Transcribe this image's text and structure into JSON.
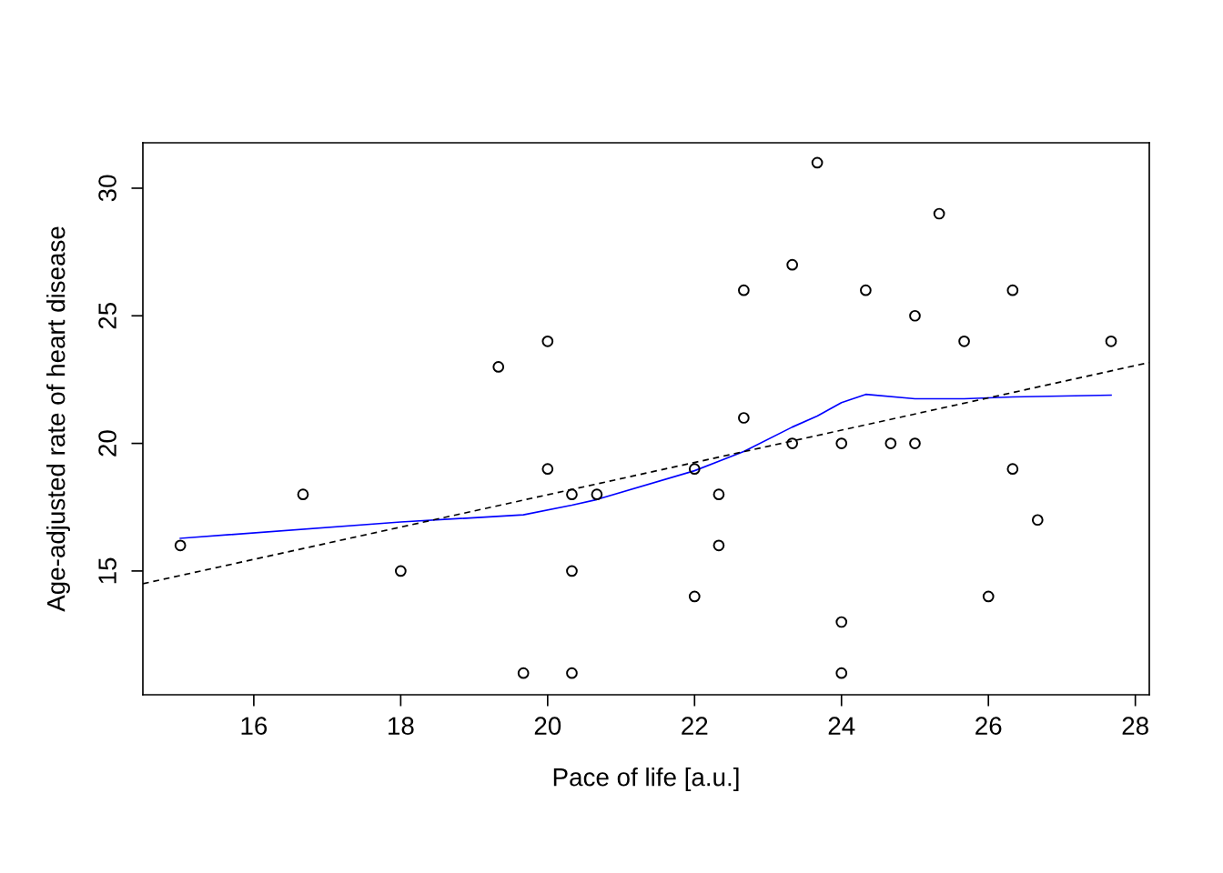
{
  "chart_data": {
    "type": "scatter",
    "xlabel": "Pace of life [a.u.]",
    "ylabel": "Age-adjusted rate of heart disease",
    "xlim": [
      14.49,
      28.19
    ],
    "ylim": [
      10.15,
      31.78
    ],
    "xticks": [
      16,
      18,
      20,
      22,
      24,
      26,
      28
    ],
    "yticks": [
      15,
      20,
      25,
      30
    ],
    "grid": false,
    "legend": false,
    "series": [
      {
        "marker": "circle",
        "color": "#000000",
        "x": [
          15,
          16.67,
          18,
          19.33,
          19.67,
          20,
          20,
          20.33,
          20.33,
          20.33,
          20.67,
          22,
          22,
          22.33,
          22.33,
          22.67,
          22.67,
          23.33,
          23.33,
          23.67,
          24,
          24,
          24,
          24.33,
          24.67,
          25,
          25,
          25.33,
          25.67,
          26,
          26.33,
          26.33,
          26.67,
          27.67
        ],
        "values": [
          16,
          18,
          15,
          23,
          11,
          24,
          19,
          18,
          15,
          11,
          18,
          19,
          14,
          18,
          16,
          26,
          21,
          27,
          20,
          31,
          20,
          13,
          11,
          26,
          20,
          25,
          20,
          29,
          24,
          14,
          26,
          19,
          17,
          24
        ]
      },
      {
        "type": "line",
        "color": "#0000ff",
        "line_style": "solid",
        "x": [
          15,
          18,
          19.67,
          20.33,
          20.67,
          22,
          22.67,
          23.33,
          23.67,
          24,
          24.33,
          25,
          25.67,
          26.33,
          27.67
        ],
        "values": [
          16.28,
          16.92,
          17.2,
          17.58,
          17.8,
          18.93,
          19.68,
          20.64,
          21.07,
          21.6,
          21.92,
          21.75,
          21.75,
          21.82,
          21.89
        ]
      },
      {
        "type": "line",
        "color": "#000000",
        "line_style": "dashed",
        "x": [
          14.49,
          28.19
        ],
        "values": [
          14.5,
          23.17
        ]
      }
    ]
  }
}
